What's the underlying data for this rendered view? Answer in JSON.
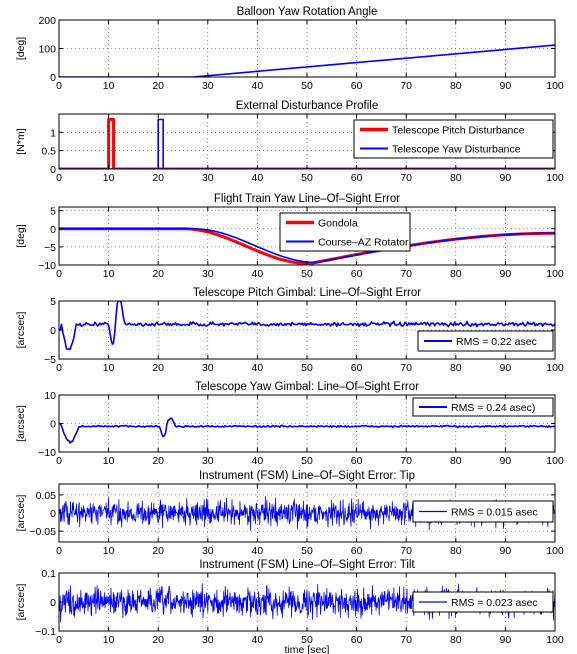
{
  "chart_data": [
    {
      "type": "line",
      "title": "Balloon Yaw Rotation Angle",
      "ylabel": "[deg]",
      "xlim": [
        0,
        100
      ],
      "ylim": [
        0,
        200
      ],
      "xticks": [
        0,
        10,
        20,
        30,
        40,
        50,
        60,
        70,
        80,
        90,
        100
      ],
      "yticks": [
        0,
        100,
        200
      ],
      "yticklabels": [
        "0",
        "100",
        "200"
      ],
      "series": [
        {
          "color": "#0000ff",
          "shape": "ramp",
          "x": [
            0,
            27,
            100
          ],
          "y": [
            0,
            0,
            112
          ]
        }
      ],
      "legend": null
    },
    {
      "type": "line",
      "title": "External Disturbance Profile",
      "ylabel": "[N*m]",
      "xlim": [
        0,
        100
      ],
      "ylim": [
        0,
        1.5
      ],
      "xticks": [
        0,
        10,
        20,
        30,
        40,
        50,
        60,
        70,
        80,
        90,
        100
      ],
      "yticks": [
        0,
        0.5,
        1
      ],
      "yticklabels": [
        "0",
        "0.5",
        "1"
      ],
      "series": [
        {
          "name": "Telescope Pitch Disturbance",
          "color": "#ff0000",
          "width": 3,
          "shape": "pulse",
          "pulse": [
            10,
            11
          ],
          "amp": 1.35
        },
        {
          "name": "Telescope Yaw Disturbance",
          "color": "#0000ff",
          "width": 1.6,
          "shape": "pulse",
          "pulse": [
            20,
            21
          ],
          "amp": 1.35
        }
      ],
      "legend": {
        "position": "right"
      }
    },
    {
      "type": "line",
      "title": "Flight Train Yaw Line–Of–Sight Error",
      "ylabel": "[deg]",
      "xlim": [
        0,
        100
      ],
      "ylim": [
        -10,
        6
      ],
      "xticks": [
        0,
        10,
        20,
        30,
        40,
        50,
        60,
        70,
        80,
        90,
        100
      ],
      "yticks": [
        -10,
        -5,
        0,
        5
      ],
      "yticklabels": [
        "−10",
        "−5",
        "0",
        "5"
      ],
      "series": [
        {
          "name": "Gondola",
          "color": "#ff0000",
          "width": 3,
          "shape": "dip",
          "start": 25,
          "min": -9.6,
          "xmin": 50.5
        },
        {
          "name": "Course–AZ Rotator",
          "color": "#0000ff",
          "width": 1.6,
          "shape": "dip",
          "start": 27,
          "min": -9.3,
          "xmin": 52
        }
      ],
      "legend": {
        "position": "top-center"
      }
    },
    {
      "type": "line",
      "title": "Telescope Pitch Gimbal: Line–Of–Sight Error",
      "ylabel": "[arcsec]",
      "xlim": [
        0,
        100
      ],
      "ylim": [
        -5,
        5
      ],
      "xticks": [
        0,
        10,
        20,
        30,
        40,
        50,
        60,
        70,
        80,
        90,
        100
      ],
      "yticks": [
        -5,
        0,
        5
      ],
      "yticklabels": [
        "−5",
        "0",
        "5"
      ],
      "series": [
        {
          "name": "RMS = 0.22 asec",
          "color": "#0000ff",
          "width": 1.6,
          "shape": "transient",
          "base": 1.0,
          "noise": 0.35,
          "events": [
            {
              "t": 0.5,
              "amp": -4.5,
              "len": 3
            },
            {
              "t": 10,
              "amp": -3.2,
              "len": 1.8
            },
            {
              "t": 11,
              "amp": 4.2,
              "len": 2.2
            }
          ]
        }
      ],
      "legend": {
        "position": "bottom-right"
      }
    },
    {
      "type": "line",
      "title": "Telescope Yaw Gimbal: Line–Of–Sight Error",
      "ylabel": "[arcsec]",
      "xlim": [
        0,
        100
      ],
      "ylim": [
        -10,
        10
      ],
      "xticks": [
        0,
        10,
        20,
        30,
        40,
        50,
        60,
        70,
        80,
        90,
        100
      ],
      "yticks": [
        -10,
        0,
        10
      ],
      "yticklabels": [
        "−10",
        "0",
        "10"
      ],
      "series": [
        {
          "name": "RMS = 0.24 asec)",
          "color": "#0000ff",
          "width": 1.6,
          "shape": "transient",
          "base": -1.0,
          "noise": 0.3,
          "events": [
            {
              "t": 0.5,
              "amp": -5.5,
              "len": 3.5
            },
            {
              "t": 20.3,
              "amp": -3.5,
              "len": 1.5
            },
            {
              "t": 21.5,
              "amp": 2.8,
              "len": 2
            }
          ]
        }
      ],
      "legend": {
        "position": "top-right"
      }
    },
    {
      "type": "line",
      "title": "Instrument (FSM) Line–Of–Sight Error: Tip",
      "ylabel": "[arcsec]",
      "xlim": [
        0,
        100
      ],
      "ylim": [
        -0.08,
        0.08
      ],
      "xticks": [
        0,
        10,
        20,
        30,
        40,
        50,
        60,
        70,
        80,
        90,
        100
      ],
      "yticks": [
        -0.05,
        0,
        0.05
      ],
      "yticklabels": [
        "−0.05",
        "0",
        "0.05"
      ],
      "series": [
        {
          "name": "RMS = 0.015 asec",
          "color": "#0000ff",
          "width": 0.8,
          "shape": "noise",
          "amp": 0.06
        }
      ],
      "legend": {
        "position": "right"
      }
    },
    {
      "type": "line",
      "title": "Instrument (FSM) Line–Of–Sight Error: Tilt",
      "ylabel": "[arcsec]",
      "xlabel": "time [sec]",
      "xlim": [
        0,
        100
      ],
      "ylim": [
        -0.1,
        0.1
      ],
      "xticks": [
        0,
        10,
        20,
        30,
        40,
        50,
        60,
        70,
        80,
        90,
        100
      ],
      "yticks": [
        -0.1,
        0,
        0.1
      ],
      "yticklabels": [
        "−0.1",
        "0",
        "0.1"
      ],
      "series": [
        {
          "name": "RMS = 0.023 asec",
          "color": "#0000ff",
          "width": 0.8,
          "shape": "noise",
          "amp": 0.085
        }
      ],
      "legend": {
        "position": "right"
      }
    }
  ]
}
